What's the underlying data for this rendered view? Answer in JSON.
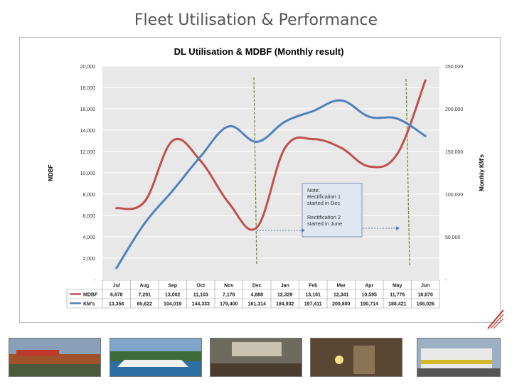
{
  "slide": {
    "title": "Fleet Utilisation & Performance"
  },
  "chart_data": {
    "type": "line",
    "title": "DL Utilisation & MDBF (Monthly result)",
    "ylabel": "MDBF",
    "y2label": "Monthly KM's",
    "categories": [
      "Jul",
      "Aug",
      "Sep",
      "Oct",
      "Nov",
      "Dec",
      "Jan",
      "Feb",
      "Mar",
      "Apr",
      "May",
      "Jun"
    ],
    "ylim": [
      0,
      20000
    ],
    "y2lim": [
      0,
      250000
    ],
    "yticks": [
      "-",
      "2,000",
      "4,000",
      "6,000",
      "8,000",
      "10,000",
      "12,000",
      "14,000",
      "16,000",
      "18,000",
      "20,000"
    ],
    "y2ticks": [
      "-",
      "50,000",
      "100,000",
      "150,000",
      "200,000",
      "250,000"
    ],
    "series": [
      {
        "name": "MDBF",
        "axis": "left",
        "color": "#c0504d",
        "values": [
          6678,
          7291,
          13002,
          11103,
          7176,
          4888,
          12329,
          13161,
          12341,
          10595,
          11776,
          18670
        ],
        "labels": [
          "6,678",
          "7,291",
          "13,002",
          "11,103",
          "7,176",
          "4,888",
          "12,329",
          "13,161",
          "12,341",
          "10,595",
          "11,776",
          "18,670"
        ]
      },
      {
        "name": "KM's",
        "axis": "right",
        "color": "#4f81bd",
        "values": [
          13356,
          65622,
          104019,
          144333,
          179400,
          161314,
          184932,
          197411,
          209800,
          190714,
          188421,
          168026
        ],
        "labels": [
          "13,356",
          "65,622",
          "104,019",
          "144,333",
          "179,400",
          "161,314",
          "184,932",
          "197,411",
          "209,800",
          "190,714",
          "188,421",
          "168,026"
        ]
      }
    ],
    "note": {
      "line1": "Note:",
      "line2": "Rectification 1",
      "line3": "started in Dec",
      "line4": "Rectification  2",
      "line5": "started in June"
    },
    "grid": true,
    "legend": "data-table"
  },
  "colors": {
    "title": "#555555",
    "plot_bg": "#e8e8e8",
    "marker_line": "#6b8e23",
    "arrow": "#4f81bd"
  },
  "photos": [
    "train-on-bridge-photo",
    "ferry-photo",
    "workshop-photo",
    "welding-photo",
    "train-at-station-photo"
  ]
}
